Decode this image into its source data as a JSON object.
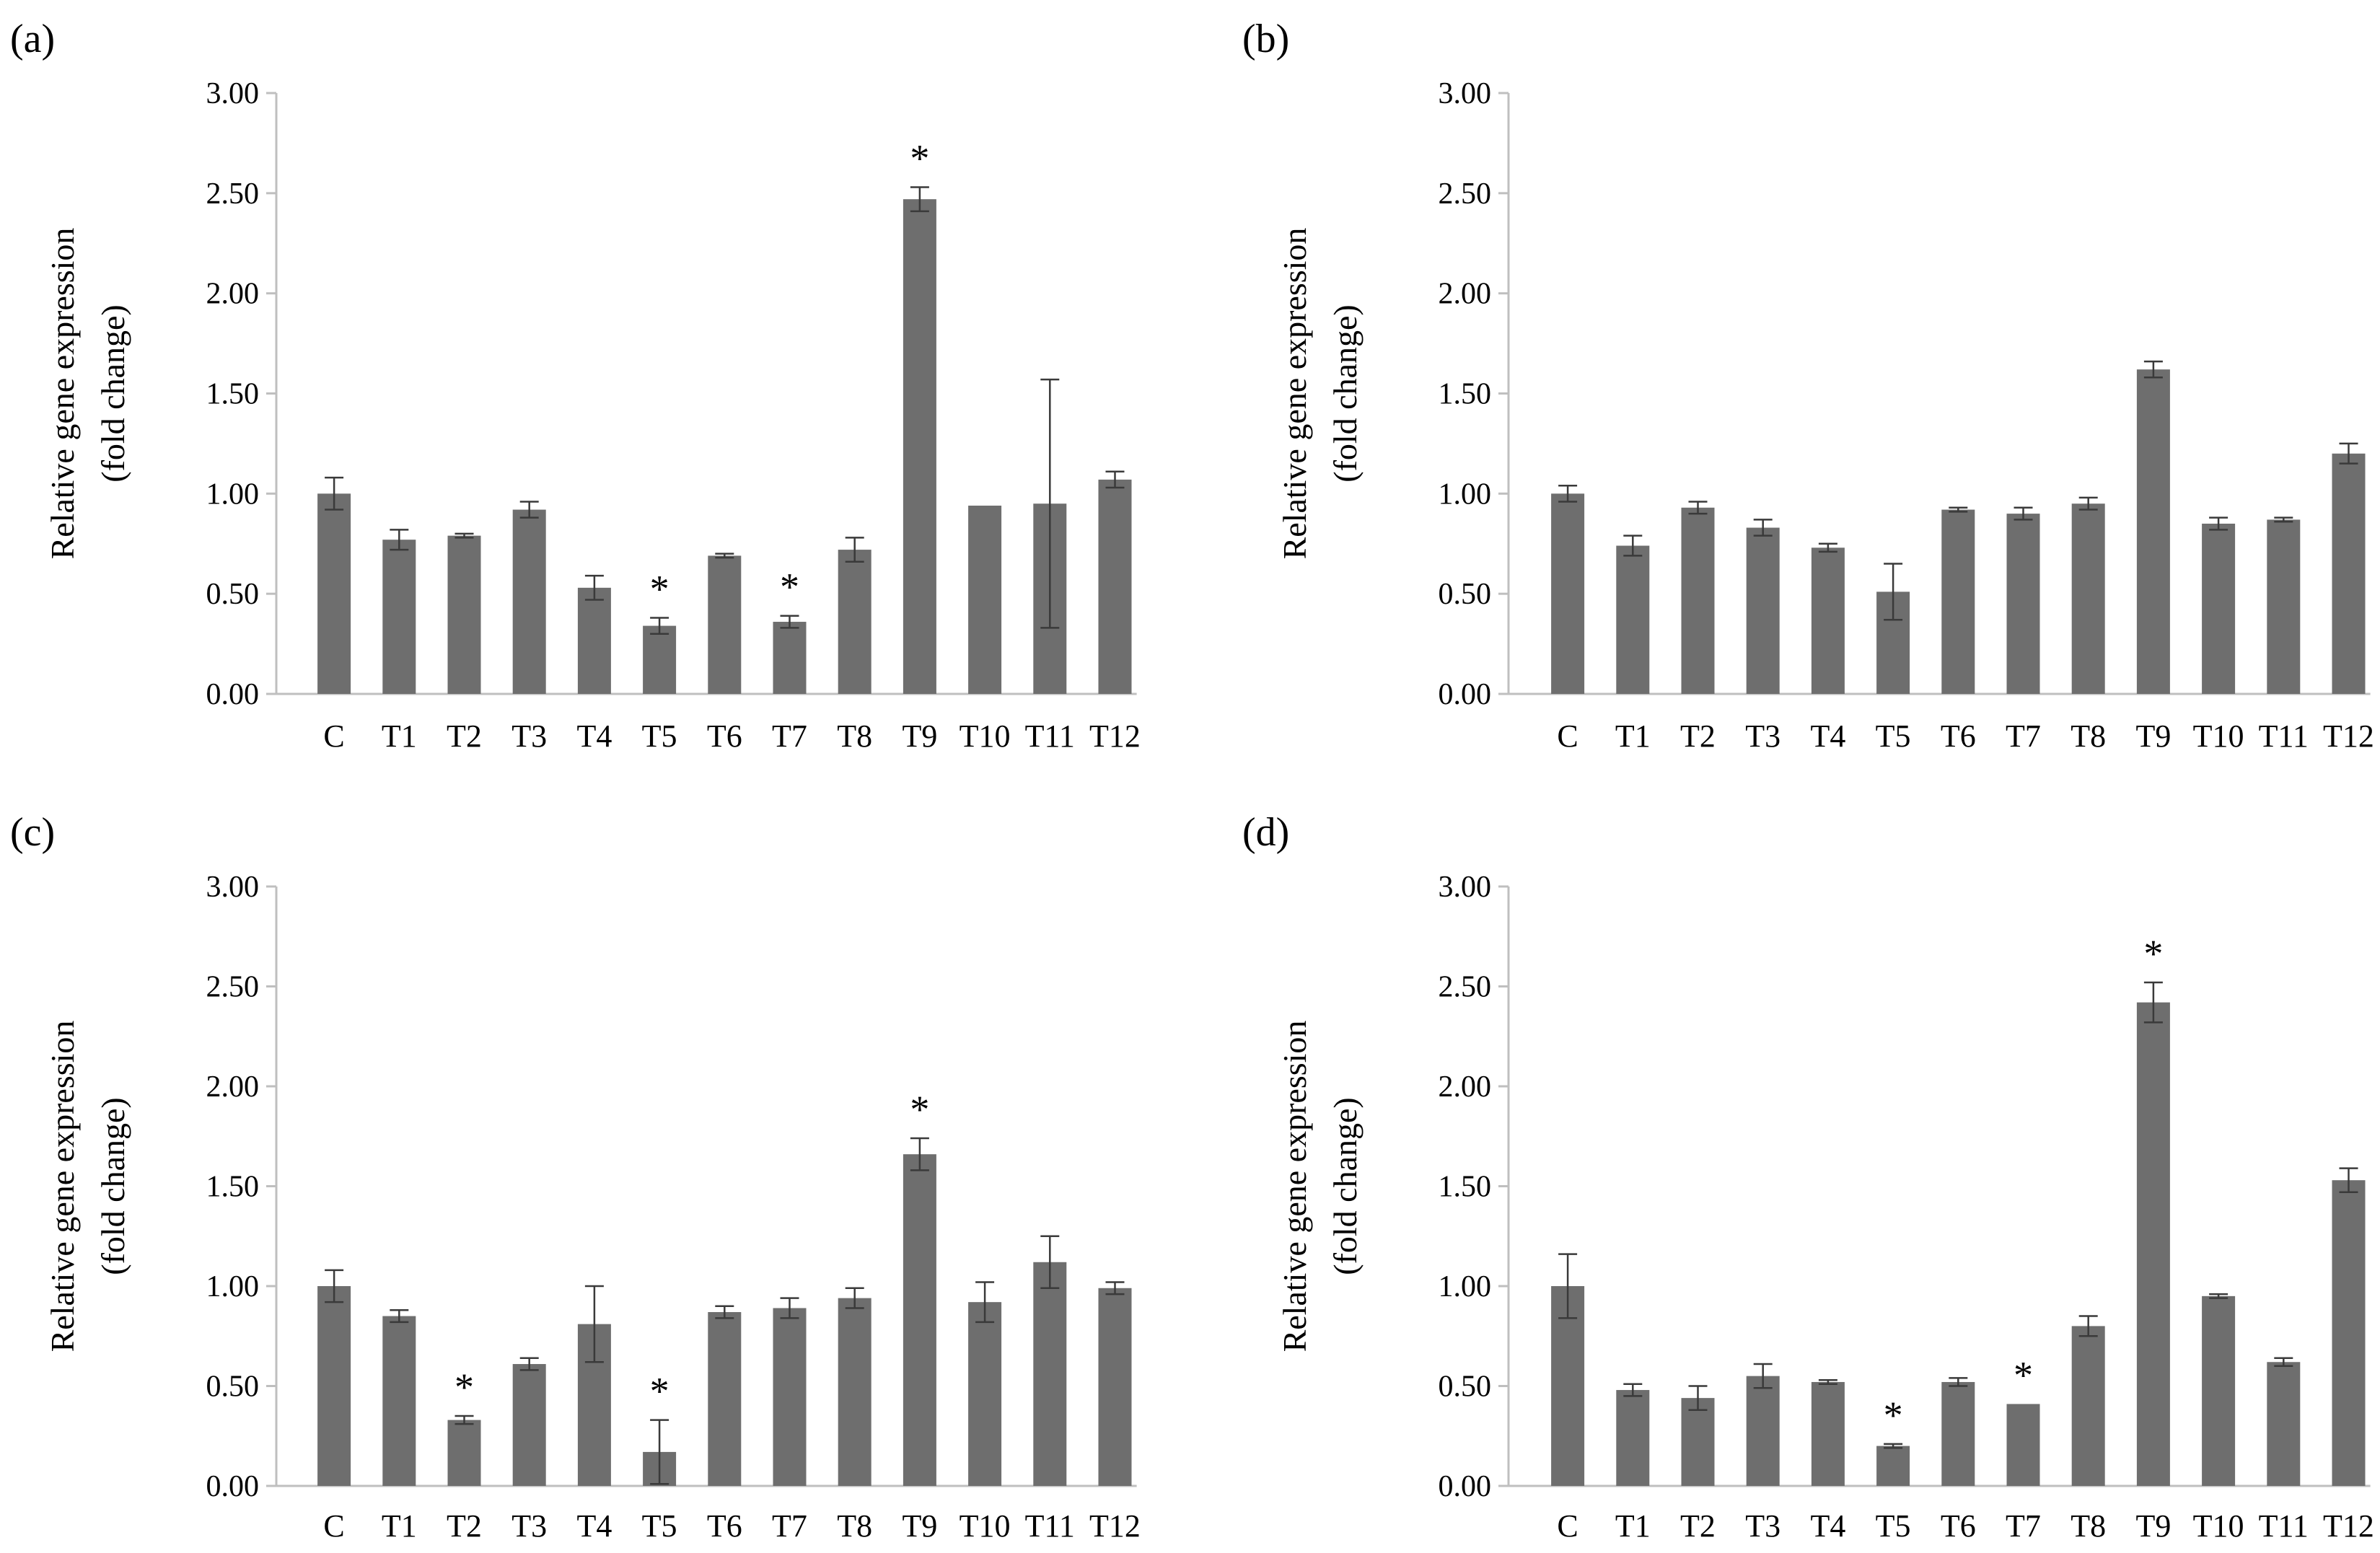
{
  "figure": {
    "bar_color": "#6e6e6e",
    "axis_color": "#bfbfbf",
    "error_color": "#3a3a3a"
  },
  "chart_data": [
    {
      "panel": "(a)",
      "type": "bar",
      "categories": [
        "C",
        "T1",
        "T2",
        "T3",
        "T4",
        "T5",
        "T6",
        "T7",
        "T8",
        "T9",
        "T10",
        "T11",
        "T12"
      ],
      "values": [
        1.0,
        0.77,
        0.79,
        0.92,
        0.53,
        0.34,
        0.69,
        0.36,
        0.72,
        2.47,
        0.94,
        0.95,
        1.07
      ],
      "errors": [
        0.08,
        0.05,
        0.01,
        0.04,
        0.06,
        0.04,
        0.01,
        0.03,
        0.06,
        0.06,
        0.0,
        0.62,
        0.04
      ],
      "significant": [
        false,
        false,
        false,
        false,
        false,
        true,
        false,
        true,
        false,
        true,
        false,
        false,
        false
      ],
      "significance_mark": "*",
      "ylabel_line1": "Relative gene expression",
      "ylabel_line2": "(fold change)",
      "ylim": [
        0,
        3
      ],
      "yticks": [
        "0.00",
        "0.50",
        "1.00",
        "1.50",
        "2.00",
        "2.50",
        "3.00"
      ]
    },
    {
      "panel": "(b)",
      "type": "bar",
      "categories": [
        "C",
        "T1",
        "T2",
        "T3",
        "T4",
        "T5",
        "T6",
        "T7",
        "T8",
        "T9",
        "T10",
        "T11",
        "T12"
      ],
      "values": [
        1.0,
        0.74,
        0.93,
        0.83,
        0.73,
        0.51,
        0.92,
        0.9,
        0.95,
        1.62,
        0.85,
        0.87,
        1.2
      ],
      "errors": [
        0.04,
        0.05,
        0.03,
        0.04,
        0.02,
        0.14,
        0.01,
        0.03,
        0.03,
        0.04,
        0.03,
        0.01,
        0.05
      ],
      "significant": [
        false,
        false,
        false,
        false,
        false,
        false,
        false,
        false,
        false,
        false,
        false,
        false,
        false
      ],
      "significance_mark": "*",
      "ylabel_line1": "Relative gene expression",
      "ylabel_line2": "(fold change)",
      "ylim": [
        0,
        3
      ],
      "yticks": [
        "0.00",
        "0.50",
        "1.00",
        "1.50",
        "2.00",
        "2.50",
        "3.00"
      ]
    },
    {
      "panel": "(c)",
      "type": "bar",
      "categories": [
        "C",
        "T1",
        "T2",
        "T3",
        "T4",
        "T5",
        "T6",
        "T7",
        "T8",
        "T9",
        "T10",
        "T11",
        "T12"
      ],
      "values": [
        1.0,
        0.85,
        0.33,
        0.61,
        0.81,
        0.17,
        0.87,
        0.89,
        0.94,
        1.66,
        0.92,
        1.12,
        0.99
      ],
      "errors": [
        0.08,
        0.03,
        0.02,
        0.03,
        0.19,
        0.16,
        0.03,
        0.05,
        0.05,
        0.08,
        0.1,
        0.13,
        0.03
      ],
      "significant": [
        false,
        false,
        true,
        false,
        false,
        true,
        false,
        false,
        false,
        true,
        false,
        false,
        false
      ],
      "significance_mark": "*",
      "ylabel_line1": "Relative gene expression",
      "ylabel_line2": "(fold change)",
      "ylim": [
        0,
        3
      ],
      "yticks": [
        "0.00",
        "0.50",
        "1.00",
        "1.50",
        "2.00",
        "2.50",
        "3.00"
      ]
    },
    {
      "panel": "(d)",
      "type": "bar",
      "categories": [
        "C",
        "T1",
        "T2",
        "T3",
        "T4",
        "T5",
        "T6",
        "T7",
        "T8",
        "T9",
        "T10",
        "T11",
        "T12"
      ],
      "values": [
        1.0,
        0.48,
        0.44,
        0.55,
        0.52,
        0.2,
        0.52,
        0.41,
        0.8,
        2.42,
        0.95,
        0.62,
        1.53
      ],
      "errors": [
        0.16,
        0.03,
        0.06,
        0.06,
        0.01,
        0.01,
        0.02,
        0.0,
        0.05,
        0.1,
        0.01,
        0.02,
        0.06
      ],
      "significant": [
        false,
        false,
        false,
        false,
        false,
        true,
        false,
        true,
        false,
        true,
        false,
        false,
        false
      ],
      "significance_mark": "*",
      "ylabel_line1": "Relative gene expression",
      "ylabel_line2": "(fold change)",
      "ylim": [
        0,
        3
      ],
      "yticks": [
        "0.00",
        "0.50",
        "1.00",
        "1.50",
        "2.00",
        "2.50",
        "3.00"
      ]
    }
  ]
}
